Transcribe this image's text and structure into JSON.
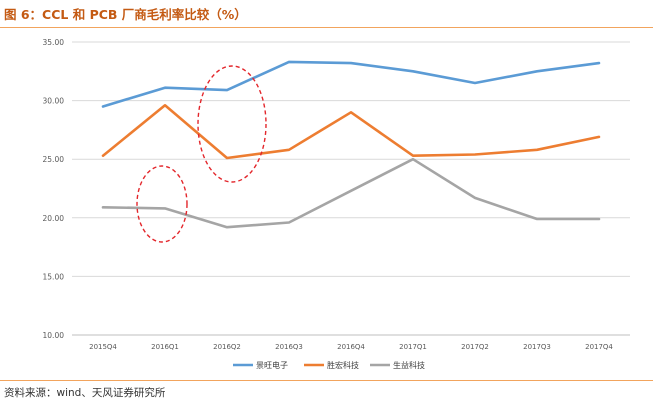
{
  "figure": {
    "title": "图 6：CCL 和 PCB 厂商毛利率比较（%）",
    "source": "资料来源：wind、天风证券研究所"
  },
  "colors": {
    "accent": "#c45a13",
    "rule": "#f2a45d",
    "ellipse": "#e3262b"
  },
  "chart_data": {
    "type": "line",
    "title": "",
    "xlabel": "",
    "ylabel": "",
    "x": [
      "2015Q4",
      "2016Q1",
      "2016Q2",
      "2016Q3",
      "2016Q4",
      "2017Q1",
      "2017Q2",
      "2017Q3",
      "2017Q4"
    ],
    "y_ticks": [
      "35.00",
      "30.00",
      "25.00",
      "20.00",
      "15.00",
      "10.00"
    ],
    "ylim": [
      10,
      35
    ],
    "grid": true,
    "legend_position": "bottom",
    "series": [
      {
        "name": "景旺电子",
        "color": "#5b9bd5",
        "values": [
          29.5,
          31.1,
          30.9,
          33.3,
          33.2,
          32.5,
          31.5,
          32.5,
          33.2
        ]
      },
      {
        "name": "胜宏科技",
        "color": "#ed7d31",
        "values": [
          25.3,
          29.6,
          25.1,
          25.8,
          29.0,
          25.3,
          25.4,
          25.8,
          26.9
        ]
      },
      {
        "name": "生益科技",
        "color": "#a5a5a5",
        "values": [
          20.9,
          20.8,
          19.2,
          19.6,
          22.3,
          25.0,
          21.7,
          19.9,
          19.9
        ]
      }
    ]
  }
}
